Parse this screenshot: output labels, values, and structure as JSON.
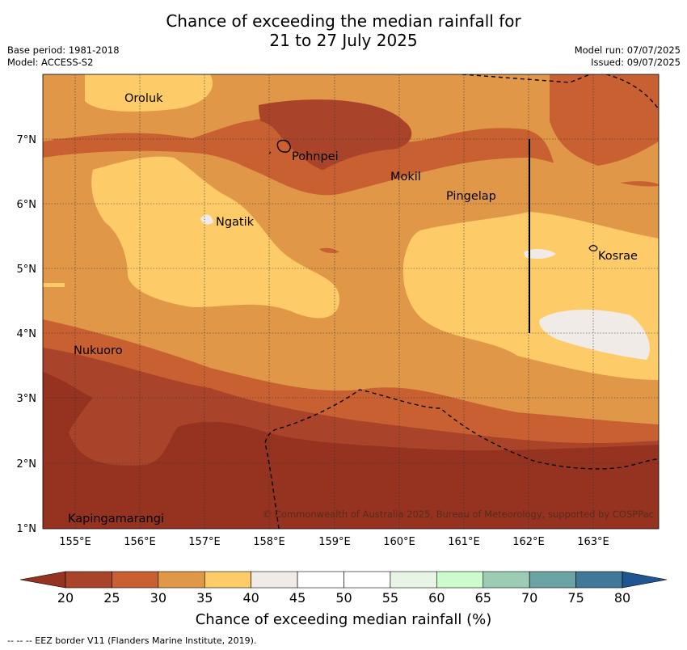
{
  "header": {
    "title_line1": "Chance of exceeding the median rainfall for",
    "title_line2": "21 to 27 July 2025",
    "base_period": "Base period: 1981-2018",
    "model": "Model: ACCESS-S2",
    "model_run": "Model run: 07/07/2025",
    "issued": "Issued: 09/07/2025"
  },
  "map": {
    "lat_labels": [
      "7°N",
      "6°N",
      "5°N",
      "4°N",
      "3°N",
      "2°N",
      "1°N"
    ],
    "lon_labels": [
      "155°E",
      "156°E",
      "157°E",
      "158°E",
      "159°E",
      "160°E",
      "161°E",
      "162°E",
      "163°E"
    ],
    "places": [
      "Oroluk",
      "Pohnpei",
      "Mokil",
      "Pingelap",
      "Ngatik",
      "Kosrae",
      "Nukuoro",
      "Kapingamarangi"
    ],
    "copyright": "© Commonwealth of Australia 2025, Bureau of Meteorology, supported by COSPPac"
  },
  "colorbar": {
    "ticks": [
      "20",
      "25",
      "30",
      "35",
      "40",
      "45",
      "50",
      "55",
      "60",
      "65",
      "70",
      "75",
      "80"
    ],
    "colors": [
      "#a9442a",
      "#c96032",
      "#e09848",
      "#fdcc68",
      "#f0ebe6",
      "#ffffff",
      "#ffffff",
      "#e8f5e6",
      "#ccfccc",
      "#9ccdb4",
      "#6ca3a4",
      "#40789a"
    ],
    "low_color": "#953320",
    "high_color": "#1f5590",
    "label": "Chance of exceeding median rainfall (%)"
  },
  "footer": {
    "eez_note": "--  --  -- EEZ border V11 (Flanders Marine Institute, 2019)."
  }
}
